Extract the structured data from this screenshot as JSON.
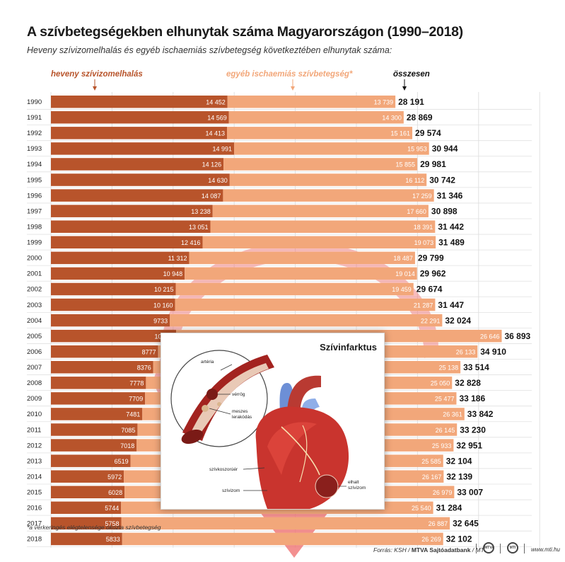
{
  "title": "A szívbetegségekben elhunytak száma Magyarországon (1990–2018)",
  "subtitle": "Heveny szívizomelhalás és egyéb ischaemiás szívbetegség következtében elhunytak száma:",
  "colors": {
    "heveny": "#b8542b",
    "egyeb": "#f2a77a",
    "grid": "#e0e0e0",
    "heart_arrow": "#ef6b6b",
    "heart_body": "#c9342e",
    "vessel_blue": "#6d8fd6"
  },
  "chart_data": {
    "type": "bar",
    "stacked": true,
    "orientation": "horizontal",
    "legend_position": "top",
    "grid": true,
    "xlim": [
      0,
      40000
    ],
    "categories": [
      "1990",
      "1991",
      "1992",
      "1993",
      "1994",
      "1995",
      "1996",
      "1997",
      "1998",
      "1999",
      "2000",
      "2001",
      "2002",
      "2003",
      "2004",
      "2005",
      "2006",
      "2007",
      "2008",
      "2009",
      "2010",
      "2011",
      "2012",
      "2013",
      "2014",
      "2015",
      "2016",
      "2017",
      "2018"
    ],
    "series": [
      {
        "name": "heveny szívizomelhalás",
        "color": "#b8542b",
        "values": [
          14452,
          14569,
          14413,
          14991,
          14126,
          14630,
          14087,
          13238,
          13051,
          12416,
          11312,
          10948,
          10215,
          10160,
          9733,
          10247,
          8777,
          8376,
          7778,
          7709,
          7481,
          7085,
          7018,
          6519,
          5972,
          6028,
          5744,
          5758,
          5833
        ],
        "labels": [
          "14 452",
          "14 569",
          "14 413",
          "14 991",
          "14 126",
          "14 630",
          "14 087",
          "13 238",
          "13 051",
          "12 416",
          "11 312",
          "10 948",
          "10 215",
          "10 160",
          "9733",
          "10 247",
          "8777",
          "8376",
          "7778",
          "7709",
          "7481",
          "7085",
          "7018",
          "6519",
          "5972",
          "6028",
          "5744",
          "5758",
          "5833"
        ]
      },
      {
        "name": "egyéb ischaemiás szívbetegség*",
        "color": "#f2a77a",
        "values": [
          13739,
          14300,
          15161,
          15953,
          15855,
          16112,
          17259,
          17660,
          18391,
          19073,
          18487,
          19014,
          19459,
          21287,
          22291,
          26646,
          26133,
          25138,
          25050,
          25477,
          26361,
          26145,
          25933,
          25585,
          26167,
          26979,
          25540,
          26887,
          26269
        ],
        "labels": [
          "13 739",
          "14 300",
          "15 161",
          "15 953",
          "15 855",
          "16 112",
          "17 259",
          "17 660",
          "18 391",
          "19 073",
          "18 487",
          "19 014",
          "19 459",
          "21 287",
          "22 291",
          "26 646",
          "26 133",
          "25 138",
          "25 050",
          "25 477",
          "26 361",
          "26 145",
          "25 933",
          "25 585",
          "26 167",
          "26 979",
          "25 540",
          "26 887",
          "26 269"
        ]
      }
    ],
    "totals_label": "összesen",
    "totals": [
      "28 191",
      "28 869",
      "29 574",
      "30 944",
      "29 981",
      "30 742",
      "31 346",
      "30 898",
      "31 442",
      "31 489",
      "29 799",
      "29 962",
      "29 674",
      "31 447",
      "32 024",
      "36 893",
      "34 910",
      "33 514",
      "32 828",
      "33 186",
      "33 842",
      "33 230",
      "32 951",
      "32 104",
      "32 139",
      "33 007",
      "31 284",
      "32 645",
      "32 102"
    ]
  },
  "inset": {
    "title": "Szívinfarktus",
    "labels": {
      "arteria": "artéria",
      "verrog": "vérrög",
      "meszes": "meszes",
      "lerakodas": "lerakódás",
      "szivkoszoruer": "szívkoszorúér",
      "szivizom": "szívizom",
      "elhalt": "elhalt",
      "elhalt_szivizom": "szívizom"
    }
  },
  "footnote": "*a vérkeringés elégtelensége okozta szívbetegség",
  "source": {
    "prefix": "Forrás: KSH / ",
    "bold": "MTVA Sajtóadatbank",
    "suffix": " / MTI"
  },
  "logos": [
    "MTVA",
    "MTI"
  ],
  "weblink": "www.mti.hu"
}
